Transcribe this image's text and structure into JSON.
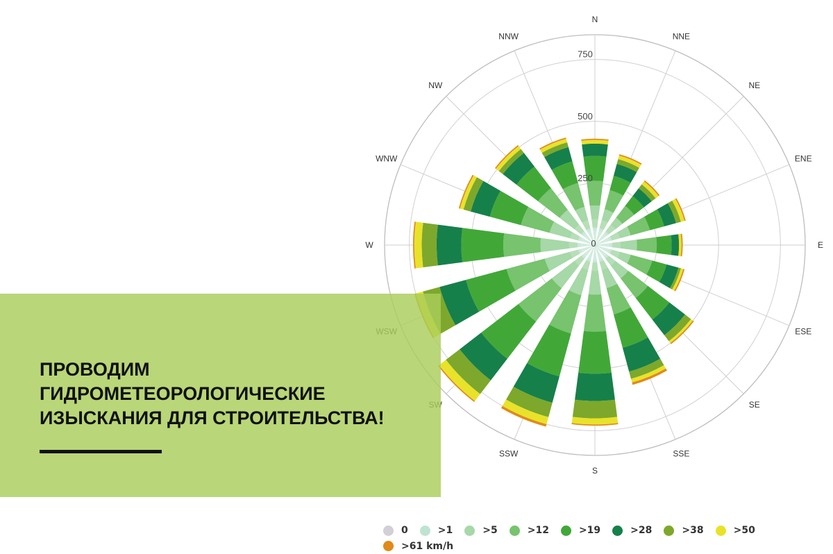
{
  "banner": {
    "line1": "ПРОВОДИМ",
    "line2": "ГИДРОМЕТЕОРОЛОГИЧЕСКИЕ",
    "line3": "ИЗЫСКАНИЯ ДЛЯ СТРОИТЕЛЬСТВА!",
    "background_color": "#a9cd58"
  },
  "chart_data": {
    "type": "wind-rose",
    "directions": [
      "N",
      "NNE",
      "NE",
      "ENE",
      "E",
      "ESE",
      "SE",
      "SSE",
      "S",
      "SSW",
      "SW",
      "WSW",
      "W",
      "WNW",
      "NW",
      "NNW"
    ],
    "radial_ticks": [
      0,
      250,
      500,
      750
    ],
    "rmax": 850,
    "speed_bins": [
      {
        "label": "0",
        "color": "#d3cfd6"
      },
      {
        "label": ">1",
        "color": "#bfe3d2"
      },
      {
        "label": ">5",
        "color": "#a6d8a8"
      },
      {
        "label": ">12",
        "color": "#77c36e"
      },
      {
        "label": ">19",
        "color": "#41a838"
      },
      {
        "label": ">28",
        "color": "#16804a"
      },
      {
        "label": ">38",
        "color": "#7da82b"
      },
      {
        "label": ">50",
        "color": "#e9e22a"
      },
      {
        "label": ">61 km/h",
        "color": "#e08a1a"
      }
    ],
    "series_totals": [
      {
        "direction": "N",
        "values": [
          0,
          70,
          90,
          100,
          100,
          50,
          0,
          15,
          5
        ]
      },
      {
        "direction": "NNE",
        "values": [
          0,
          70,
          80,
          80,
          60,
          50,
          20,
          15,
          5
        ]
      },
      {
        "direction": "NE",
        "values": [
          0,
          70,
          70,
          60,
          50,
          40,
          20,
          15,
          5
        ]
      },
      {
        "direction": "ENE",
        "values": [
          0,
          70,
          80,
          80,
          60,
          50,
          20,
          15,
          5
        ]
      },
      {
        "direction": "E",
        "values": [
          0,
          70,
          100,
          80,
          60,
          30,
          0,
          10,
          5
        ]
      },
      {
        "direction": "ESE",
        "values": [
          0,
          70,
          80,
          90,
          60,
          50,
          10,
          10,
          5
        ]
      },
      {
        "direction": "SE",
        "values": [
          0,
          70,
          100,
          100,
          110,
          80,
          30,
          10,
          5
        ]
      },
      {
        "direction": "SSE",
        "values": [
          0,
          70,
          110,
          110,
          140,
          100,
          30,
          15,
          10
        ]
      },
      {
        "direction": "S",
        "values": [
          0,
          70,
          130,
          150,
          170,
          110,
          70,
          25,
          5
        ]
      },
      {
        "direction": "SSW",
        "values": [
          0,
          70,
          140,
          160,
          180,
          110,
          60,
          30,
          10
        ]
      },
      {
        "direction": "SW",
        "values": [
          0,
          70,
          150,
          170,
          190,
          110,
          70,
          35,
          5
        ]
      },
      {
        "direction": "WSW",
        "values": [
          0,
          70,
          140,
          160,
          170,
          110,
          70,
          30,
          5
        ]
      },
      {
        "direction": "W",
        "values": [
          0,
          70,
          150,
          150,
          170,
          100,
          60,
          30,
          5
        ]
      },
      {
        "direction": "WNW",
        "values": [
          0,
          70,
          120,
          120,
          130,
          80,
          30,
          15,
          5
        ]
      },
      {
        "direction": "NW",
        "values": [
          0,
          70,
          110,
          110,
          110,
          70,
          20,
          15,
          5
        ]
      },
      {
        "direction": "NNW",
        "values": [
          0,
          70,
          90,
          100,
          90,
          60,
          20,
          15,
          5
        ]
      }
    ],
    "grid": true
  }
}
